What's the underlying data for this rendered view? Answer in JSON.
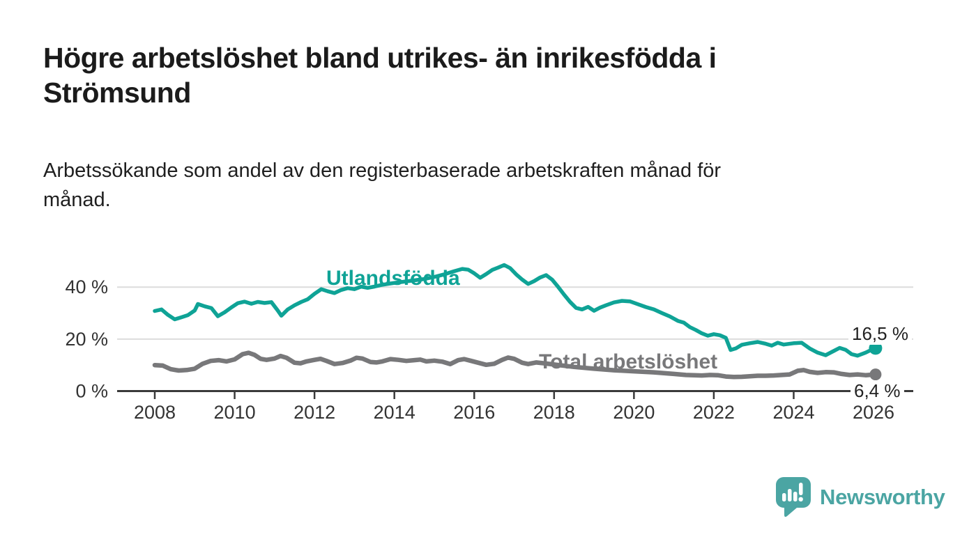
{
  "header": {
    "title": "Högre arbetslöshet bland utrikes- än inrikesfödda i Strömsund",
    "subtitle": "Arbetssökande som andel av den registerbaserade arbetskraften månad för månad."
  },
  "chart_data": {
    "type": "line",
    "unit": "%",
    "grid": "horizontal",
    "legend_position": "inline-labels",
    "x_range": [
      2008,
      2026.6
    ],
    "y_range": [
      0,
      50
    ],
    "x_ticks": [
      "2008",
      "2010",
      "2012",
      "2014",
      "2016",
      "2018",
      "2020",
      "2022",
      "2024",
      "2026"
    ],
    "y_ticks": [
      {
        "value": 40,
        "label": "40 %"
      },
      {
        "value": 20,
        "label": "20 %"
      },
      {
        "value": 0,
        "label": "0 %"
      }
    ],
    "axis_color": "#3A3A3A",
    "axis_text_color": "#333333",
    "grid_color": "#DCDCDC",
    "series": [
      {
        "name": "Utlandsfödda",
        "color": "#0FA396",
        "end_label": "16,5 %",
        "end_value": 16.5,
        "points": [
          [
            2008.0,
            30.8
          ],
          [
            2008.17,
            31.4
          ],
          [
            2008.33,
            29.3
          ],
          [
            2008.5,
            27.6
          ],
          [
            2008.67,
            28.4
          ],
          [
            2008.83,
            29.2
          ],
          [
            2009.0,
            31.0
          ],
          [
            2009.08,
            33.5
          ],
          [
            2009.25,
            32.6
          ],
          [
            2009.42,
            31.9
          ],
          [
            2009.58,
            28.8
          ],
          [
            2009.75,
            30.3
          ],
          [
            2009.92,
            32.2
          ],
          [
            2010.08,
            33.8
          ],
          [
            2010.25,
            34.4
          ],
          [
            2010.42,
            33.6
          ],
          [
            2010.58,
            34.3
          ],
          [
            2010.75,
            33.9
          ],
          [
            2010.92,
            34.2
          ],
          [
            2011.08,
            31.0
          ],
          [
            2011.17,
            29.0
          ],
          [
            2011.33,
            31.4
          ],
          [
            2011.5,
            33.0
          ],
          [
            2011.67,
            34.3
          ],
          [
            2011.83,
            35.3
          ],
          [
            2012.0,
            37.4
          ],
          [
            2012.17,
            39.2
          ],
          [
            2012.33,
            38.4
          ],
          [
            2012.5,
            37.7
          ],
          [
            2012.67,
            38.9
          ],
          [
            2012.83,
            39.6
          ],
          [
            2013.0,
            39.2
          ],
          [
            2013.17,
            40.2
          ],
          [
            2013.33,
            39.7
          ],
          [
            2013.5,
            40.2
          ],
          [
            2013.67,
            40.8
          ],
          [
            2013.83,
            41.2
          ],
          [
            2014.0,
            41.6
          ],
          [
            2014.25,
            42.1
          ],
          [
            2014.5,
            42.6
          ],
          [
            2014.75,
            43.1
          ],
          [
            2015.0,
            43.9
          ],
          [
            2015.25,
            44.9
          ],
          [
            2015.5,
            46.1
          ],
          [
            2015.7,
            47.0
          ],
          [
            2015.85,
            46.7
          ],
          [
            2016.0,
            45.3
          ],
          [
            2016.15,
            43.6
          ],
          [
            2016.3,
            45.0
          ],
          [
            2016.45,
            46.6
          ],
          [
            2016.6,
            47.5
          ],
          [
            2016.75,
            48.5
          ],
          [
            2016.9,
            47.3
          ],
          [
            2017.05,
            44.9
          ],
          [
            2017.2,
            42.9
          ],
          [
            2017.35,
            41.2
          ],
          [
            2017.5,
            42.3
          ],
          [
            2017.65,
            43.7
          ],
          [
            2017.8,
            44.6
          ],
          [
            2017.95,
            42.9
          ],
          [
            2018.1,
            40.1
          ],
          [
            2018.25,
            37.1
          ],
          [
            2018.4,
            34.3
          ],
          [
            2018.55,
            32.0
          ],
          [
            2018.7,
            31.4
          ],
          [
            2018.85,
            32.4
          ],
          [
            2019.0,
            30.9
          ],
          [
            2019.15,
            32.1
          ],
          [
            2019.3,
            33.0
          ],
          [
            2019.5,
            34.1
          ],
          [
            2019.7,
            34.7
          ],
          [
            2019.9,
            34.5
          ],
          [
            2020.1,
            33.4
          ],
          [
            2020.3,
            32.3
          ],
          [
            2020.5,
            31.4
          ],
          [
            2020.7,
            30.0
          ],
          [
            2020.9,
            28.7
          ],
          [
            2021.1,
            27.0
          ],
          [
            2021.25,
            26.3
          ],
          [
            2021.4,
            24.6
          ],
          [
            2021.55,
            23.5
          ],
          [
            2021.7,
            22.2
          ],
          [
            2021.85,
            21.3
          ],
          [
            2022.0,
            21.9
          ],
          [
            2022.15,
            21.5
          ],
          [
            2022.3,
            20.5
          ],
          [
            2022.42,
            15.8
          ],
          [
            2022.55,
            16.4
          ],
          [
            2022.7,
            17.8
          ],
          [
            2022.9,
            18.4
          ],
          [
            2023.1,
            18.9
          ],
          [
            2023.3,
            18.2
          ],
          [
            2023.45,
            17.5
          ],
          [
            2023.6,
            18.6
          ],
          [
            2023.75,
            17.9
          ],
          [
            2024.0,
            18.4
          ],
          [
            2024.2,
            18.6
          ],
          [
            2024.4,
            16.4
          ],
          [
            2024.6,
            14.8
          ],
          [
            2024.8,
            13.8
          ],
          [
            2025.0,
            15.4
          ],
          [
            2025.15,
            16.6
          ],
          [
            2025.3,
            15.9
          ],
          [
            2025.45,
            14.2
          ],
          [
            2025.6,
            13.6
          ],
          [
            2025.8,
            14.8
          ],
          [
            2025.95,
            15.9
          ],
          [
            2026.05,
            16.5
          ]
        ]
      },
      {
        "name": "Total arbetslöshet",
        "color": "#78787A",
        "end_label": "6,4 %",
        "end_value": 6.4,
        "points": [
          [
            2008.0,
            10.0
          ],
          [
            2008.2,
            9.8
          ],
          [
            2008.4,
            8.4
          ],
          [
            2008.6,
            7.9
          ],
          [
            2008.8,
            8.1
          ],
          [
            2009.0,
            8.6
          ],
          [
            2009.2,
            10.5
          ],
          [
            2009.4,
            11.6
          ],
          [
            2009.6,
            11.9
          ],
          [
            2009.8,
            11.4
          ],
          [
            2010.0,
            12.2
          ],
          [
            2010.2,
            14.2
          ],
          [
            2010.35,
            14.7
          ],
          [
            2010.5,
            13.9
          ],
          [
            2010.65,
            12.4
          ],
          [
            2010.8,
            12.0
          ],
          [
            2011.0,
            12.5
          ],
          [
            2011.15,
            13.5
          ],
          [
            2011.3,
            12.8
          ],
          [
            2011.5,
            10.9
          ],
          [
            2011.65,
            10.7
          ],
          [
            2011.8,
            11.4
          ],
          [
            2012.0,
            12.0
          ],
          [
            2012.15,
            12.4
          ],
          [
            2012.3,
            11.6
          ],
          [
            2012.5,
            10.4
          ],
          [
            2012.7,
            10.8
          ],
          [
            2012.9,
            11.7
          ],
          [
            2013.05,
            12.8
          ],
          [
            2013.2,
            12.5
          ],
          [
            2013.4,
            11.2
          ],
          [
            2013.55,
            11.0
          ],
          [
            2013.7,
            11.4
          ],
          [
            2013.9,
            12.3
          ],
          [
            2014.1,
            12.0
          ],
          [
            2014.3,
            11.6
          ],
          [
            2014.5,
            11.9
          ],
          [
            2014.65,
            12.1
          ],
          [
            2014.8,
            11.4
          ],
          [
            2015.0,
            11.7
          ],
          [
            2015.2,
            11.3
          ],
          [
            2015.4,
            10.4
          ],
          [
            2015.6,
            11.9
          ],
          [
            2015.75,
            12.3
          ],
          [
            2015.9,
            11.7
          ],
          [
            2016.1,
            10.9
          ],
          [
            2016.3,
            10.1
          ],
          [
            2016.5,
            10.5
          ],
          [
            2016.7,
            12.0
          ],
          [
            2016.85,
            12.9
          ],
          [
            2017.0,
            12.4
          ],
          [
            2017.2,
            10.9
          ],
          [
            2017.35,
            10.4
          ],
          [
            2017.55,
            11.0
          ],
          [
            2017.75,
            10.7
          ],
          [
            2018.0,
            10.2
          ],
          [
            2018.5,
            9.3
          ],
          [
            2019.0,
            8.6
          ],
          [
            2019.5,
            8.0
          ],
          [
            2020.0,
            7.6
          ],
          [
            2020.5,
            7.2
          ],
          [
            2021.0,
            6.6
          ],
          [
            2021.3,
            6.2
          ],
          [
            2021.5,
            6.1
          ],
          [
            2021.7,
            6.0
          ],
          [
            2021.9,
            6.2
          ],
          [
            2022.1,
            6.1
          ],
          [
            2022.3,
            5.6
          ],
          [
            2022.5,
            5.4
          ],
          [
            2022.7,
            5.5
          ],
          [
            2022.9,
            5.7
          ],
          [
            2023.1,
            5.9
          ],
          [
            2023.3,
            5.9
          ],
          [
            2023.5,
            6.0
          ],
          [
            2023.7,
            6.2
          ],
          [
            2023.9,
            6.4
          ],
          [
            2024.1,
            7.8
          ],
          [
            2024.25,
            8.1
          ],
          [
            2024.4,
            7.4
          ],
          [
            2024.6,
            7.0
          ],
          [
            2024.8,
            7.3
          ],
          [
            2025.0,
            7.2
          ],
          [
            2025.2,
            6.6
          ],
          [
            2025.4,
            6.2
          ],
          [
            2025.6,
            6.4
          ],
          [
            2025.8,
            6.1
          ],
          [
            2026.05,
            6.4
          ]
        ]
      }
    ]
  },
  "branding": {
    "logo_text": "Newsworthy",
    "logo_color": "#4BA5A3",
    "logo_icon": "bar-chart-speech-bubble"
  }
}
